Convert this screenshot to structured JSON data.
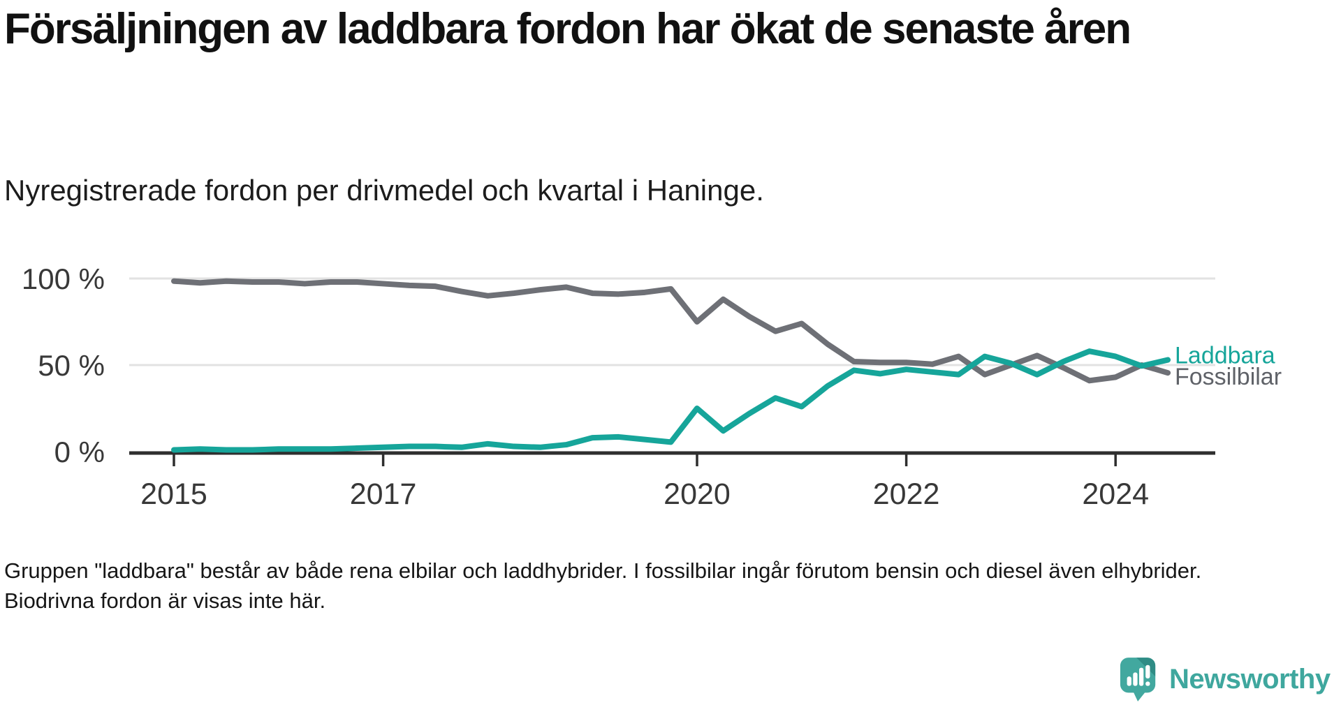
{
  "page": {
    "title": "Försäljningen av laddbara fordon har ökat de senaste åren",
    "subtitle": "Nyregistrerade fordon per drivmedel och kvartal i Haninge.",
    "footnote": "Gruppen \"laddbara\" består av både rena elbilar och laddhybrider. I fossilbilar ingår förutom bensin och diesel även elhybrider. Biodrivna fordon är visas inte här.",
    "brand": "Newsworthy"
  },
  "colors": {
    "laddbara_teal": "#16a59a",
    "fossil_gray": "#6e7076",
    "fossil_label_gray": "#5f6268",
    "axis_dark": "#2e2e2e",
    "gridline_gray": "#e2e2e2",
    "tick_label_gray": "#383838",
    "logo_teal": "#42a89f",
    "logo_fold_teal": "#2f8c85"
  },
  "chart_data": {
    "type": "line",
    "title": "Försäljningen av laddbara fordon har ökat de senaste åren",
    "subtitle": "Nyregistrerade fordon per drivmedel och kvartal i Haninge.",
    "x_unit": "quarter",
    "grid": "horizontal",
    "legend_position": "line-end-labels",
    "ylim": [
      0,
      100
    ],
    "y_ticks": [
      {
        "label": "100 %",
        "value": 100
      },
      {
        "label": "50 %",
        "value": 50
      },
      {
        "label": "0 %",
        "value": 0
      }
    ],
    "x_ticks": [
      {
        "label": "2015",
        "index": 0
      },
      {
        "label": "2017",
        "index": 8
      },
      {
        "label": "2020",
        "index": 20
      },
      {
        "label": "2022",
        "index": 28
      },
      {
        "label": "2024",
        "index": 36
      }
    ],
    "x": [
      "2015 Q1",
      "2015 Q2",
      "2015 Q3",
      "2015 Q4",
      "2016 Q1",
      "2016 Q2",
      "2016 Q3",
      "2016 Q4",
      "2017 Q1",
      "2017 Q2",
      "2017 Q3",
      "2017 Q4",
      "2018 Q1",
      "2018 Q2",
      "2018 Q3",
      "2018 Q4",
      "2019 Q1",
      "2019 Q2",
      "2019 Q3",
      "2019 Q4",
      "2020 Q1",
      "2020 Q2",
      "2020 Q3",
      "2020 Q4",
      "2021 Q1",
      "2021 Q2",
      "2021 Q3",
      "2021 Q4",
      "2022 Q1",
      "2022 Q2",
      "2022 Q3",
      "2022 Q4",
      "2023 Q1",
      "2023 Q2",
      "2023 Q3",
      "2023 Q4",
      "2024 Q1",
      "2024 Q2",
      "2024 Q3"
    ],
    "series": [
      {
        "name": "Fossilbilar",
        "color": "#6e7076",
        "label_color": "#5f6268",
        "values": [
          98.5,
          97.5,
          98.5,
          98,
          98,
          97,
          98,
          98,
          97,
          96,
          95.5,
          92.5,
          90,
          91.5,
          93.5,
          95,
          91.5,
          91,
          92,
          94,
          75,
          88,
          78,
          69.5,
          74,
          62,
          52,
          51.5,
          51.5,
          50.5,
          55,
          44.5,
          50,
          55.5,
          48.5,
          41,
          43,
          50,
          45.5
        ]
      },
      {
        "name": "Laddbara",
        "color": "#16a59a",
        "label_color": "#16a59a",
        "values": [
          1,
          1.5,
          1,
          1,
          1.5,
          1.5,
          1.5,
          2,
          2.5,
          3,
          3,
          2.5,
          4.5,
          3,
          2.5,
          4,
          8,
          8.5,
          7,
          5.5,
          25,
          12,
          22,
          31,
          26,
          38,
          47,
          45,
          47.5,
          46,
          44.5,
          55,
          51,
          44.5,
          52,
          58,
          55,
          49.5,
          53
        ]
      }
    ]
  }
}
